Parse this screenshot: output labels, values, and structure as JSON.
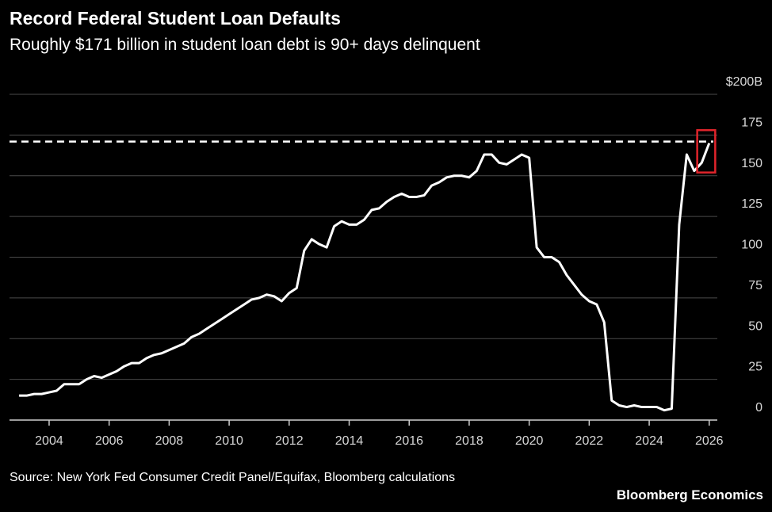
{
  "chart_data": {
    "type": "line",
    "title": "Record Federal Student Loan Defaults",
    "subtitle": "Roughly $171 billion in student loan debt is 90+ days delinquent",
    "source": "Source: New York Fed Consumer Credit Panel/Equifax, Bloomberg calculations",
    "branding": "Bloomberg Economics",
    "x": [
      2003,
      2003.25,
      2003.5,
      2003.75,
      2004,
      2004.25,
      2004.5,
      2004.75,
      2005,
      2005.25,
      2005.5,
      2005.75,
      2006,
      2006.25,
      2006.5,
      2006.75,
      2007,
      2007.25,
      2007.5,
      2007.75,
      2008,
      2008.25,
      2008.5,
      2008.75,
      2009,
      2009.25,
      2009.5,
      2009.75,
      2010,
      2010.25,
      2010.5,
      2010.75,
      2011,
      2011.25,
      2011.5,
      2011.75,
      2012,
      2012.25,
      2012.5,
      2012.75,
      2013,
      2013.25,
      2013.5,
      2013.75,
      2014,
      2014.25,
      2014.5,
      2014.75,
      2015,
      2015.25,
      2015.5,
      2015.75,
      2016,
      2016.25,
      2016.5,
      2016.75,
      2017,
      2017.25,
      2017.5,
      2017.75,
      2018,
      2018.25,
      2018.5,
      2018.75,
      2019,
      2019.25,
      2019.5,
      2019.75,
      2020,
      2020.25,
      2020.5,
      2020.75,
      2021,
      2021.25,
      2021.5,
      2021.75,
      2022,
      2022.25,
      2022.5,
      2022.75,
      2023,
      2023.25,
      2023.5,
      2023.75,
      2024,
      2024.25,
      2024.5,
      2024.75,
      2025,
      2025.25,
      2025.5,
      2025.75,
      2026
    ],
    "series": [
      {
        "color": "#ffffff",
        "values": [
          15,
          15,
          16,
          16,
          17,
          18,
          22,
          22,
          22,
          25,
          27,
          26,
          28,
          30,
          33,
          35,
          35,
          38,
          40,
          41,
          43,
          45,
          47,
          51,
          53,
          56,
          59,
          62,
          65,
          68,
          71,
          74,
          75,
          77,
          76,
          73,
          78,
          81,
          104,
          111,
          108,
          106,
          119,
          122,
          120,
          120,
          123,
          129,
          130,
          134,
          137,
          139,
          137,
          137,
          138,
          144,
          146,
          149,
          150,
          150,
          149,
          153,
          163,
          163,
          158,
          157,
          160,
          163,
          161,
          106,
          100,
          100,
          97,
          89,
          83,
          77,
          73,
          71,
          60,
          12,
          9,
          8,
          9,
          8,
          8,
          8,
          6,
          7,
          120,
          163,
          153,
          158,
          170
        ]
      }
    ],
    "reference_line": {
      "value": 171,
      "color": "#ffffff",
      "style": "dashed"
    },
    "highlight": {
      "x": [
        2025.6,
        2026.2
      ],
      "y": [
        152,
        178
      ],
      "color": "#e0242b"
    },
    "xlim": [
      2002.68,
      2026.27
    ],
    "xticks": [
      2004,
      2006,
      2008,
      2010,
      2012,
      2014,
      2016,
      2018,
      2020,
      2022,
      2024,
      2026
    ],
    "ylim": [
      0,
      200
    ],
    "yticks": [
      0,
      25,
      50,
      75,
      100,
      125,
      150,
      175,
      {
        "value": 200,
        "label": "$200B"
      }
    ],
    "grid": true
  }
}
